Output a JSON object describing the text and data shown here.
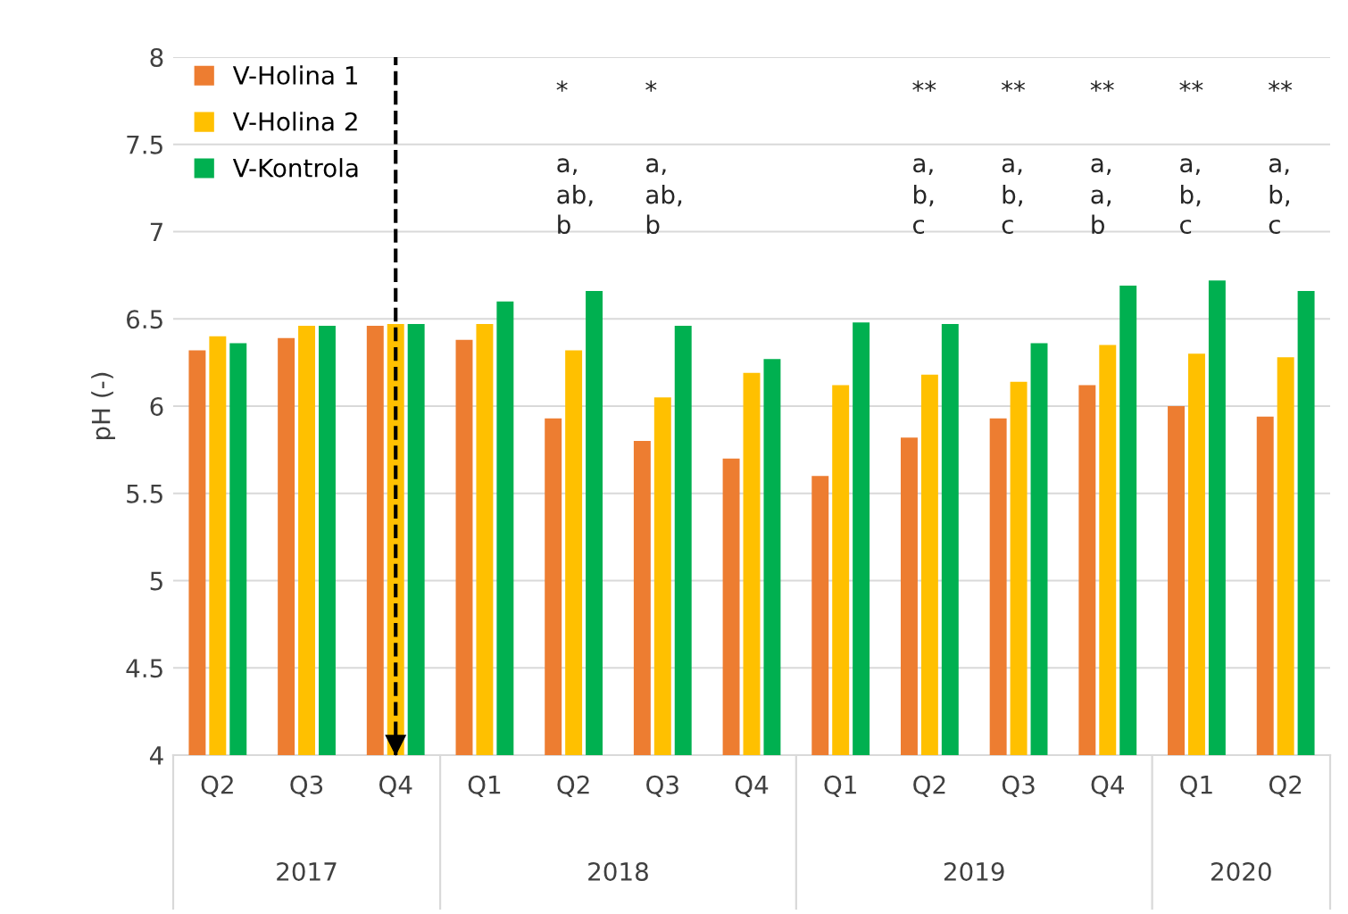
{
  "chart_data": {
    "type": "bar",
    "ylabel": "pH (-)",
    "categories": [
      "Q2",
      "Q3",
      "Q4",
      "Q1",
      "Q2",
      "Q3",
      "Q4",
      "Q1",
      "Q2",
      "Q3",
      "Q4",
      "Q1",
      "Q2"
    ],
    "series": [
      {
        "name": "V-Holina 1",
        "color": "#ed7d31",
        "values": [
          6.32,
          6.39,
          6.46,
          6.38,
          5.93,
          5.8,
          5.7,
          5.6,
          5.82,
          5.93,
          6.12,
          6.0,
          5.94
        ]
      },
      {
        "name": "V-Holina 2",
        "color": "#ffc000",
        "values": [
          6.4,
          6.46,
          6.47,
          6.47,
          6.32,
          6.05,
          6.19,
          6.12,
          6.18,
          6.14,
          6.35,
          6.3,
          6.28
        ]
      },
      {
        "name": "V-Kontrola",
        "color": "#00b050",
        "values": [
          6.36,
          6.46,
          6.47,
          6.6,
          6.66,
          6.46,
          6.27,
          6.48,
          6.47,
          6.36,
          6.69,
          6.72,
          6.66
        ]
      }
    ],
    "ylim": [
      4,
      8
    ],
    "yticks": [
      4,
      4.5,
      5,
      5.5,
      6,
      6.5,
      7,
      7.5,
      8
    ],
    "grid": "y",
    "legend": "top left",
    "ref_lines": [
      {
        "axis": "x",
        "value": "Q4",
        "line_style": "dashed",
        "color": "#000000"
      }
    ],
    "annotations": [
      "2017",
      "2018",
      "2019",
      "2020",
      "*",
      "a,",
      "ab,",
      "b",
      "*",
      "a,",
      "ab,",
      "b",
      "**",
      "a,",
      "b,",
      "c",
      "**",
      "a,",
      "b,",
      "c",
      "**",
      "a,",
      "a,",
      "b",
      "**",
      "a,",
      "b,",
      "c",
      "**",
      "a,",
      "b,",
      "c"
    ]
  }
}
